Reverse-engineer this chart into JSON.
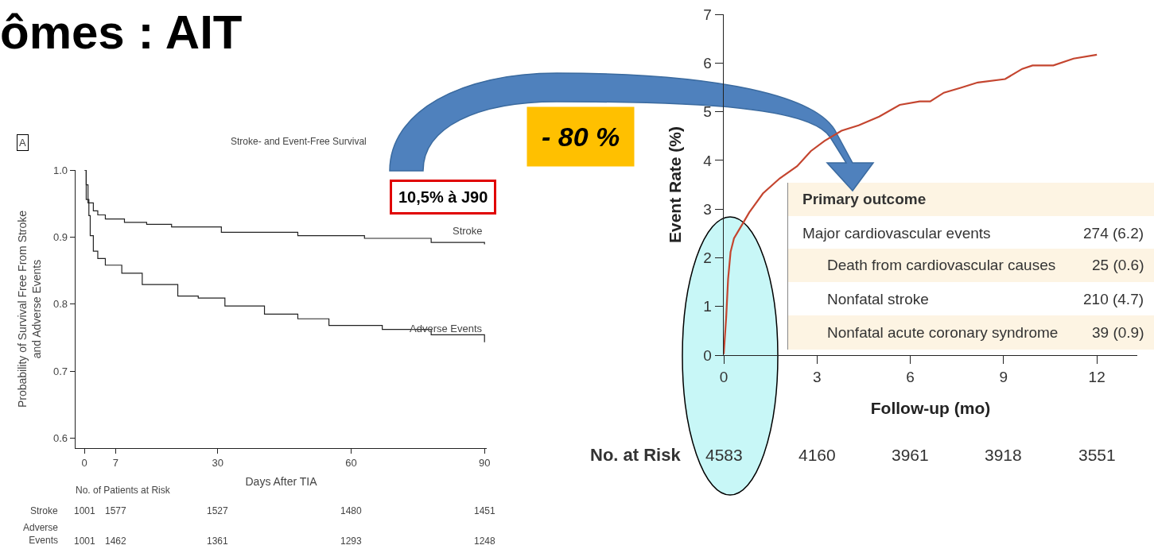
{
  "chart_data": [
    {
      "type": "step",
      "title": "ômes : AIT",
      "subtitle": "Stroke- and Event-Free Survival",
      "xlabel": "Days After TIA",
      "ylabel": "Probability of Survival Free From Stroke\nand Adverse Events",
      "xlim": [
        -2,
        90.5
      ],
      "xticks": [
        0,
        7,
        30,
        60,
        90
      ],
      "ylim": [
        0.585,
        1.0
      ],
      "yticks": [
        {
          "value": 0.6,
          "label": "0.6"
        },
        0.7,
        0.8,
        0.9,
        {
          "value": 1,
          "label": "1.0"
        }
      ],
      "grid": false,
      "legend": false,
      "series": [
        {
          "name": "Stroke",
          "color": "#222222",
          "x": [
            0,
            0.4,
            0.8,
            2,
            3,
            4.7,
            9,
            14,
            19.6,
            30.8,
            48,
            63,
            78,
            90
          ],
          "values": [
            1.0,
            0.978,
            0.951,
            0.939,
            0.933,
            0.927,
            0.922,
            0.919,
            0.915,
            0.907,
            0.902,
            0.898,
            0.892,
            0.889
          ]
        },
        {
          "name": "Adverse Events",
          "color": "#222222",
          "x": [
            0,
            0.4,
            1,
            1.3,
            2,
            3,
            4.7,
            8.4,
            13,
            21,
            25.6,
            31.6,
            40.5,
            48,
            55,
            67,
            78,
            90
          ],
          "values": [
            1.0,
            0.956,
            0.932,
            0.902,
            0.879,
            0.868,
            0.858,
            0.846,
            0.829,
            0.812,
            0.809,
            0.797,
            0.785,
            0.778,
            0.768,
            0.762,
            0.754,
            0.743
          ]
        }
      ],
      "annotations": [
        "A",
        "10,5% à J90",
        "No. of Patients at Risk",
        "Stroke",
        "Adverse\nEvents",
        "1001",
        "1577",
        "1527",
        "1480",
        "1451",
        "1001",
        "1462",
        "1361",
        "1293",
        "1248"
      ]
    },
    {
      "type": "line",
      "xlabel": "Follow-up (mo)",
      "ylabel": "Event Rate (%)",
      "xlim": [
        0,
        13.3
      ],
      "xticks": [
        0,
        3,
        6,
        9,
        12
      ],
      "ylim": [
        0,
        7
      ],
      "yticks": [
        0,
        1,
        2,
        3,
        4,
        5,
        6,
        7
      ],
      "grid": false,
      "legend": false,
      "series": [
        {
          "color": "#c4452f",
          "x": [
            0,
            0.08,
            0.14,
            0.22,
            0.33,
            0.6,
            0.82,
            1.26,
            1.8,
            2.36,
            2.8,
            3.24,
            3.79,
            4.34,
            5.0,
            5.66,
            6.3,
            6.64,
            7.08,
            7.62,
            8.17,
            9.05,
            9.6,
            9.93,
            10.6,
            11.25,
            12.0
          ],
          "values": [
            0.02,
            0.79,
            1.56,
            2.12,
            2.4,
            2.69,
            2.93,
            3.32,
            3.63,
            3.88,
            4.19,
            4.4,
            4.61,
            4.72,
            4.9,
            5.14,
            5.21,
            5.21,
            5.39,
            5.49,
            5.6,
            5.67,
            5.88,
            5.95,
            5.95,
            6.09,
            6.17
          ]
        }
      ],
      "annotations": [
        "Primary outcome",
        "Major cardiovascular events",
        "274 (6.2)",
        "Death from cardiovascular causes",
        "25 (0.6)",
        "Nonfatal stroke",
        "210 (4.7)",
        "Nonfatal acute coronary syndrome",
        "39 (0.9)",
        "No. at Risk",
        "4583",
        "4160",
        "3961",
        "3918",
        "3551",
        "- 80 %"
      ]
    }
  ]
}
